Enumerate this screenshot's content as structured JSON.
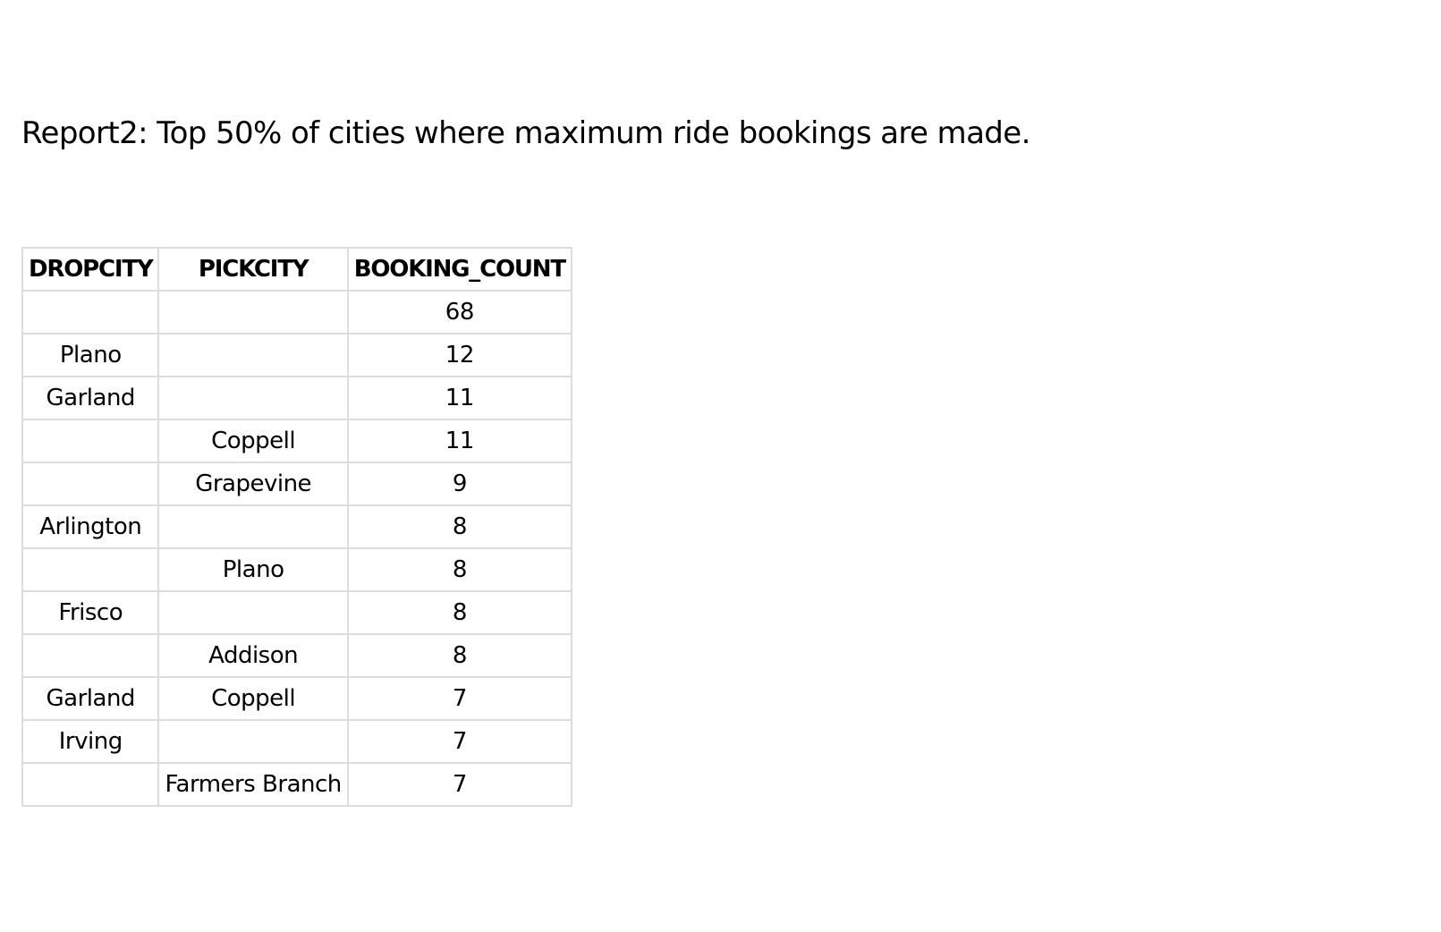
{
  "report": {
    "title": "Report2: Top 50% of cities where maximum ride bookings are made."
  },
  "table": {
    "columns": [
      "DROPCITY",
      "PICKCITY",
      "BOOKING_COUNT"
    ],
    "rows": [
      [
        "",
        "",
        "68"
      ],
      [
        "Plano",
        "",
        "12"
      ],
      [
        "Garland",
        "",
        "11"
      ],
      [
        "",
        "Coppell",
        "11"
      ],
      [
        "",
        "Grapevine",
        "9"
      ],
      [
        "Arlington",
        "",
        "8"
      ],
      [
        "",
        "Plano",
        "8"
      ],
      [
        "Frisco",
        "",
        "8"
      ],
      [
        "",
        "Addison",
        "8"
      ],
      [
        "Garland",
        "Coppell",
        "7"
      ],
      [
        "Irving",
        "",
        "7"
      ],
      [
        "",
        "Farmers Branch",
        "7"
      ]
    ]
  },
  "colors": {
    "text": "#000000",
    "grid": "#dddddd",
    "background": "#ffffff"
  }
}
